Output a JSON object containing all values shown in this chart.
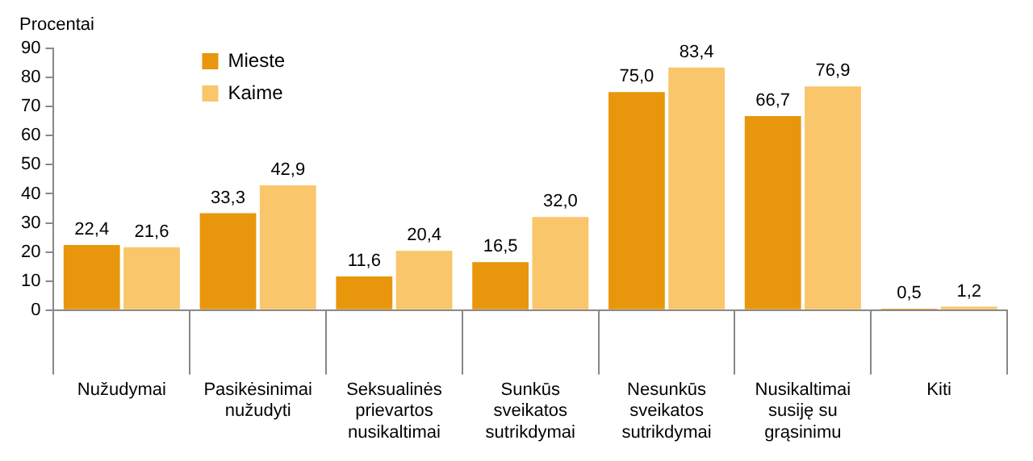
{
  "chart_data": {
    "type": "bar",
    "ylabel": "Procentai",
    "categories": [
      "Nužudymai",
      "Pasikėsinimai nužudyti",
      "Seksualinės prievartos nusikaltimai",
      "Sunkūs sveikatos sutrikdymai",
      "Nesunkūs sveikatos sutrikdymai",
      "Nusikaltimai susiję su grąsinimu",
      "Kiti"
    ],
    "series": [
      {
        "name": "Mieste",
        "color": "#e8960c",
        "values": [
          22.4,
          33.3,
          11.6,
          16.5,
          75.0,
          66.7,
          0.5
        ],
        "value_labels": [
          "22,4",
          "33,3",
          "11,6",
          "16,5",
          "75,0",
          "66,7",
          "0,5"
        ]
      },
      {
        "name": "Kaime",
        "color": "#f9c66c",
        "values": [
          21.6,
          42.9,
          20.4,
          32.0,
          83.4,
          76.9,
          1.2
        ],
        "value_labels": [
          "21,6",
          "42,9",
          "20,4",
          "32,0",
          "83,4",
          "76,9",
          "1,2"
        ]
      }
    ],
    "ylim": [
      0,
      90
    ],
    "yticks": [
      0,
      10,
      20,
      30,
      40,
      50,
      60,
      70,
      80,
      90
    ],
    "grid": false,
    "legend": "top left"
  }
}
